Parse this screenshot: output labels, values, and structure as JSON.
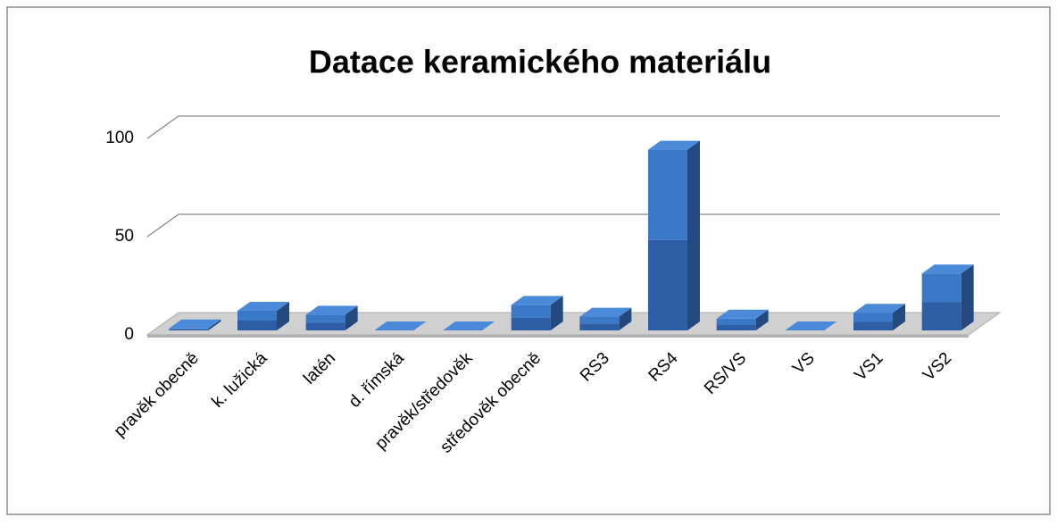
{
  "chart_data": {
    "type": "bar3d",
    "title": "Datace keramického materiálu",
    "categories": [
      "pravěk obecně",
      "k. lužická",
      "latén",
      "d. římská",
      "pravěk/středověk",
      "středověk obecně",
      "RS3",
      "RS4",
      "RS/VS",
      "VS",
      "VS1",
      "VS2"
    ],
    "values": [
      1,
      10,
      8,
      0,
      0,
      13,
      7,
      92,
      6,
      0,
      9,
      29
    ],
    "color": "#3a78c8",
    "ylim": [
      0,
      100
    ],
    "yticks": [
      0,
      50,
      100
    ],
    "grid": true
  }
}
